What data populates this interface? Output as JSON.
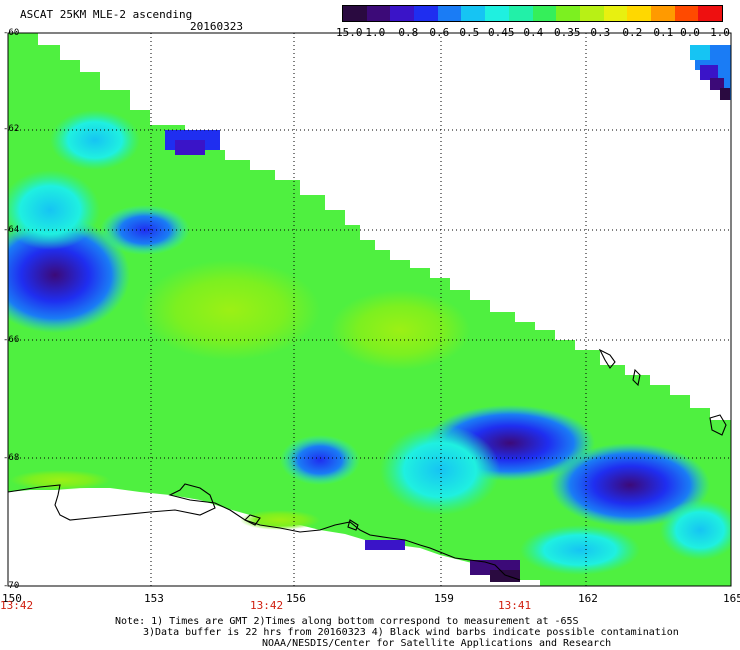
{
  "header": {
    "title": "ASCAT 25KM MLE-2 ascending",
    "date": "20160323"
  },
  "colorbar": {
    "labels": [
      "-15.0",
      "-1.0",
      "-0.8",
      "-0.6",
      "-0.5",
      "-0.45",
      "-0.4",
      "-0.35",
      "-0.3",
      "-0.2",
      "-0.1",
      "0.0",
      "1.0"
    ],
    "colors": [
      "#2a0a40",
      "#3c0a78",
      "#3a14c8",
      "#1f2ef0",
      "#1a7cf5",
      "#16c4f3",
      "#1ff0e0",
      "#22f0a8",
      "#35ef5a",
      "#7cf020",
      "#b8f015",
      "#e8f010",
      "#ffd800",
      "#ff9a00",
      "#ff4a00",
      "#ee1010"
    ]
  },
  "axes": {
    "lat_labels": [
      "-60",
      "-62",
      "-64",
      "-66",
      "-68",
      "-70"
    ],
    "lon_labels": [
      "150",
      "153",
      "156",
      "159",
      "162",
      "165"
    ],
    "time_labels": [
      "13:42",
      "13:42",
      "13:41"
    ]
  },
  "footer": {
    "line1": "Note: 1) Times are GMT 2)Times along bottom correspond to measurement at -65S",
    "line2": "3)Data buffer is 22 hrs from 20160323 4) Black wind barbs indicate possible contamination",
    "line3": "NOAA/NESDIS/Center for Satellite Applications and Research"
  },
  "palette": {
    "frame": "#000000",
    "grid": "#000000",
    "coast": "#000000",
    "time_text": "#d02010"
  }
}
